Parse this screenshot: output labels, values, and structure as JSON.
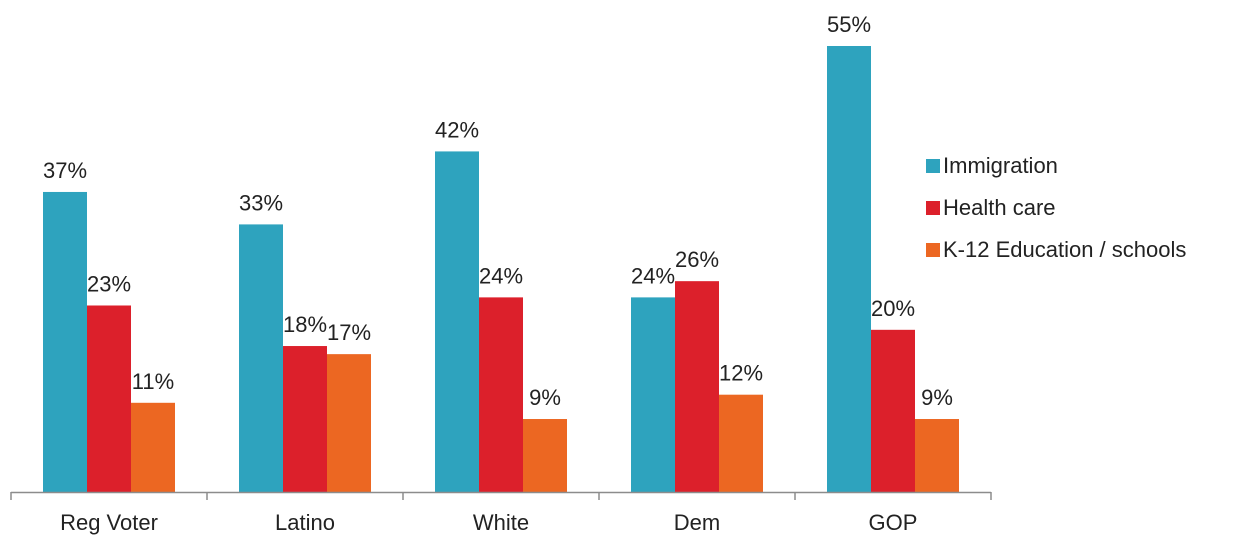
{
  "chart_data": {
    "type": "bar",
    "title": "",
    "xlabel": "",
    "ylabel": "",
    "ylim": [
      0,
      55
    ],
    "grid": false,
    "legend_position": "right",
    "categories": [
      "Reg Voter",
      "Latino",
      "White",
      "Dem",
      "GOP"
    ],
    "series": [
      {
        "name": "Immigration",
        "color": "#2ea3be",
        "values": [
          37,
          33,
          42,
          24,
          55
        ],
        "labels": [
          "37%",
          "33%",
          "42%",
          "24%",
          "55%"
        ]
      },
      {
        "name": "Health care",
        "color": "#dc202b",
        "values": [
          23,
          18,
          24,
          26,
          20
        ],
        "labels": [
          "23%",
          "18%",
          "24%",
          "26%",
          "20%"
        ]
      },
      {
        "name": "K-12 Education / schools",
        "color": "#ec6722",
        "values": [
          11,
          17,
          9,
          12,
          9
        ],
        "labels": [
          "11%",
          "17%",
          "9%",
          "12%",
          "9%"
        ]
      }
    ]
  }
}
